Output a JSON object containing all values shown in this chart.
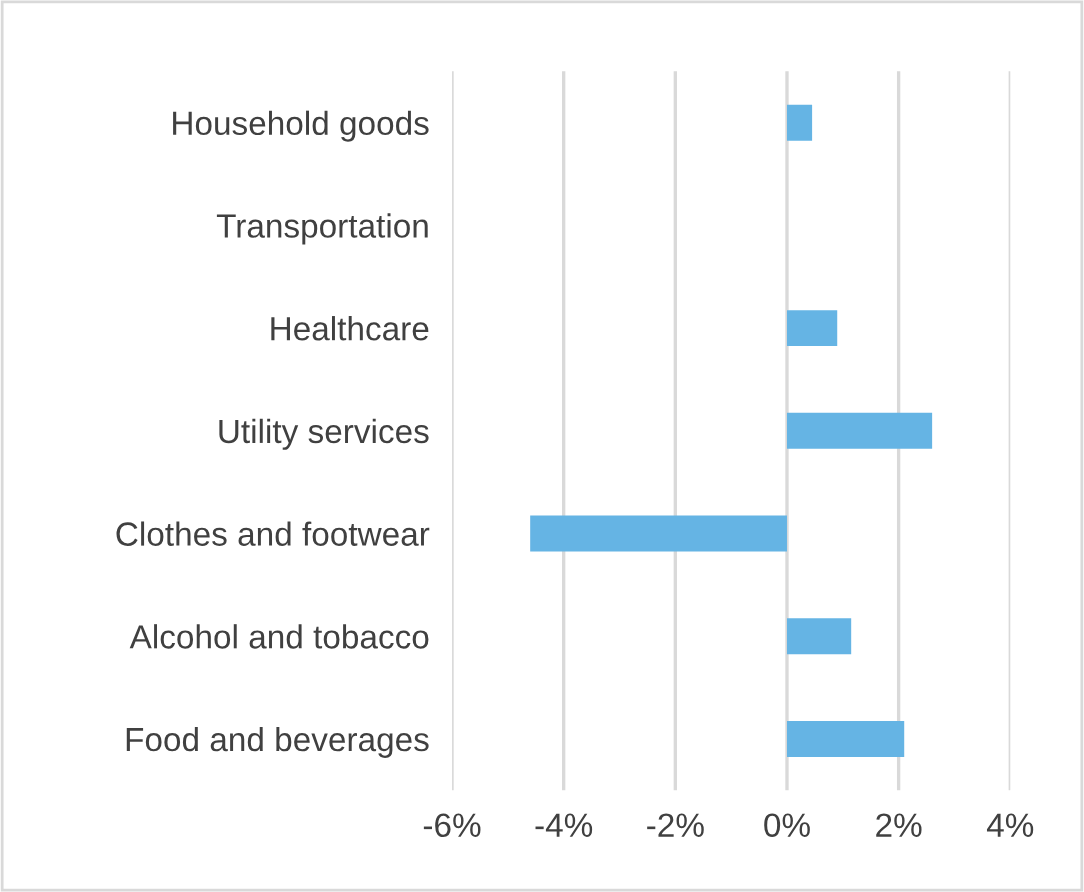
{
  "chart_data": {
    "type": "bar",
    "orientation": "horizontal",
    "categories": [
      "Household goods",
      "Transportation",
      "Healthcare",
      "Utility services",
      "Clothes and footwear",
      "Alcohol and tobacco",
      "Food and beverages"
    ],
    "values": [
      0.45,
      0,
      0.9,
      2.6,
      -4.6,
      1.15,
      2.1
    ],
    "color": "#65b4e4",
    "xlim": [
      -6,
      4
    ],
    "xticks": [
      {
        "value": -6,
        "label": "-6%"
      },
      {
        "value": -4,
        "label": "-4%"
      },
      {
        "value": -2,
        "label": "-2%"
      },
      {
        "value": 0,
        "label": "0%"
      },
      {
        "value": 2,
        "label": "2%"
      },
      {
        "value": 4,
        "label": "4%"
      }
    ],
    "grid": "x",
    "legend": false
  }
}
